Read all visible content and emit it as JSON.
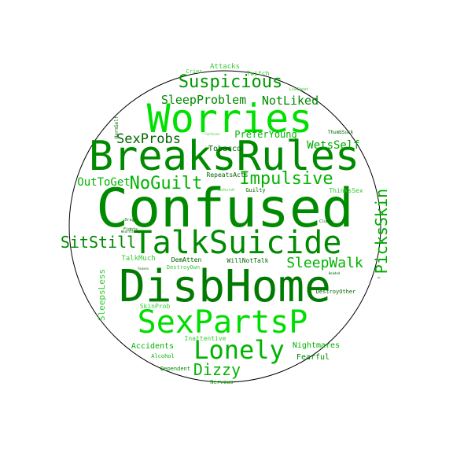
{
  "word_cloud": {
    "colors": {
      "dark_green": "#007a00",
      "green": "#00b300",
      "bright_green": "#00e000",
      "light_green": "#33cc33",
      "border": "#000000"
    },
    "words": [
      {
        "id": "w-confused",
        "text": "Confused",
        "color": "#008a00"
      },
      {
        "id": "w-disbhome",
        "text": "DisbHome",
        "color": "#007a00"
      },
      {
        "id": "w-breaksrules",
        "text": "BreaksRules",
        "color": "#008a00"
      },
      {
        "id": "w-worries",
        "text": "Worries",
        "color": "#00e000"
      },
      {
        "id": "w-talksuicide",
        "text": "TalkSuicide",
        "color": "#008a00"
      },
      {
        "id": "w-sexpartsp",
        "text": "SexPartsP",
        "color": "#00dd00"
      },
      {
        "id": "w-lonely",
        "text": "Lonely",
        "color": "#00b300"
      },
      {
        "id": "w-suspicious",
        "text": "Suspicious",
        "color": "#009900"
      },
      {
        "id": "w-impulsive",
        "text": "Impulsive",
        "color": "#00b300"
      },
      {
        "id": "w-noguilt",
        "text": "NoGuilt",
        "color": "#00b300"
      },
      {
        "id": "w-sitstill",
        "text": "SitStill",
        "color": "#008a00"
      },
      {
        "id": "w-dizzy",
        "text": "Dizzy",
        "color": "#00b300"
      },
      {
        "id": "w-pickskin",
        "text": "PicksSkin",
        "color": "#00aa00"
      },
      {
        "id": "w-sleepwalk",
        "text": "SleepWalk",
        "color": "#00b300"
      },
      {
        "id": "w-sleepproblem",
        "text": "SleepProblem",
        "color": "#008a00"
      },
      {
        "id": "w-sexprobs",
        "text": "SexProbs",
        "color": "#006600"
      },
      {
        "id": "w-notliked",
        "text": "NotLiked",
        "color": "#008a00"
      },
      {
        "id": "w-outtoget",
        "text": "OutToGet",
        "color": "#00b300"
      },
      {
        "id": "w-wetsself",
        "text": "WetsSelf",
        "color": "#00aa00"
      },
      {
        "id": "w-preferyoung",
        "text": "PreferYoung",
        "color": "#00b300"
      },
      {
        "id": "w-sleepsless",
        "text": "SleepsLess",
        "color": "#33cc33"
      },
      {
        "id": "w-tobacco",
        "text": "Tobacco",
        "color": "#006600"
      },
      {
        "id": "w-nightmares",
        "text": "Nightmares",
        "color": "#00b300"
      },
      {
        "id": "w-accidents",
        "text": "Accidents",
        "color": "#00b300"
      },
      {
        "id": "w-fearful",
        "text": "Fearful",
        "color": "#008a00"
      },
      {
        "id": "w-attacks",
        "text": "Attacks",
        "color": "#33cc33"
      },
      {
        "id": "w-twitch",
        "text": "Twitch",
        "color": "#33cc33"
      },
      {
        "id": "w-cries",
        "text": "Cries",
        "color": "#33cc33"
      },
      {
        "id": "w-repeatsacts",
        "text": "RepeatsActs",
        "color": "#006600"
      },
      {
        "id": "w-thinkssex",
        "text": "ThinksSex",
        "color": "#33cc33"
      },
      {
        "id": "w-talkmuch",
        "text": "TalkMuch",
        "color": "#33cc33"
      },
      {
        "id": "w-dematten",
        "text": "DemAtten",
        "color": "#006600"
      },
      {
        "id": "w-willnottalk",
        "text": "WillNotTalk",
        "color": "#006600"
      },
      {
        "id": "w-skinprob",
        "text": "SkinProb",
        "color": "#33cc33"
      },
      {
        "id": "w-inattentive",
        "text": "Inattentive",
        "color": "#33cc33"
      },
      {
        "id": "w-alcohol",
        "text": "Alcohol",
        "color": "#00b300"
      },
      {
        "id": "w-dependent",
        "text": "Dependent",
        "color": "#008a00"
      },
      {
        "id": "w-nervous",
        "text": "Nervous",
        "color": "#00aa00"
      },
      {
        "id": "w-destroyown",
        "text": "DestroyOwn",
        "color": "#33cc33"
      },
      {
        "id": "w-destroyother",
        "text": "DestroyOther",
        "color": "#006600"
      },
      {
        "id": "w-guilty",
        "text": "Guilty",
        "color": "#006600"
      },
      {
        "id": "w-thumbsuck",
        "text": "ThumbSuck",
        "color": "#006600"
      },
      {
        "id": "w-clumsy",
        "text": "Clumsy",
        "color": "#006600"
      },
      {
        "id": "w-harmself",
        "text": "HarmSelf",
        "color": "#006600"
      },
      {
        "id": "w-liecheat",
        "text": "LieCheat",
        "color": "#33cc33"
      },
      {
        "id": "w-confuses",
        "text": "Confuses",
        "color": "#33cc33"
      },
      {
        "id": "w-sexpartsm",
        "text": "SexPartsM",
        "color": "#33cc33"
      },
      {
        "id": "w-drugs",
        "text": "Drugs",
        "color": "#006600"
      },
      {
        "id": "w-fights",
        "text": "Fights",
        "color": "#006600"
      },
      {
        "id": "w-hearsthings",
        "text": "HearsThings",
        "color": "#006600"
      },
      {
        "id": "w-teases",
        "text": "Teases",
        "color": "#006600"
      },
      {
        "id": "w-headed",
        "text": "Headed",
        "color": "#006600"
      },
      {
        "id": "w-ms",
        "text": "Ms",
        "color": "#006600"
      }
    ]
  }
}
